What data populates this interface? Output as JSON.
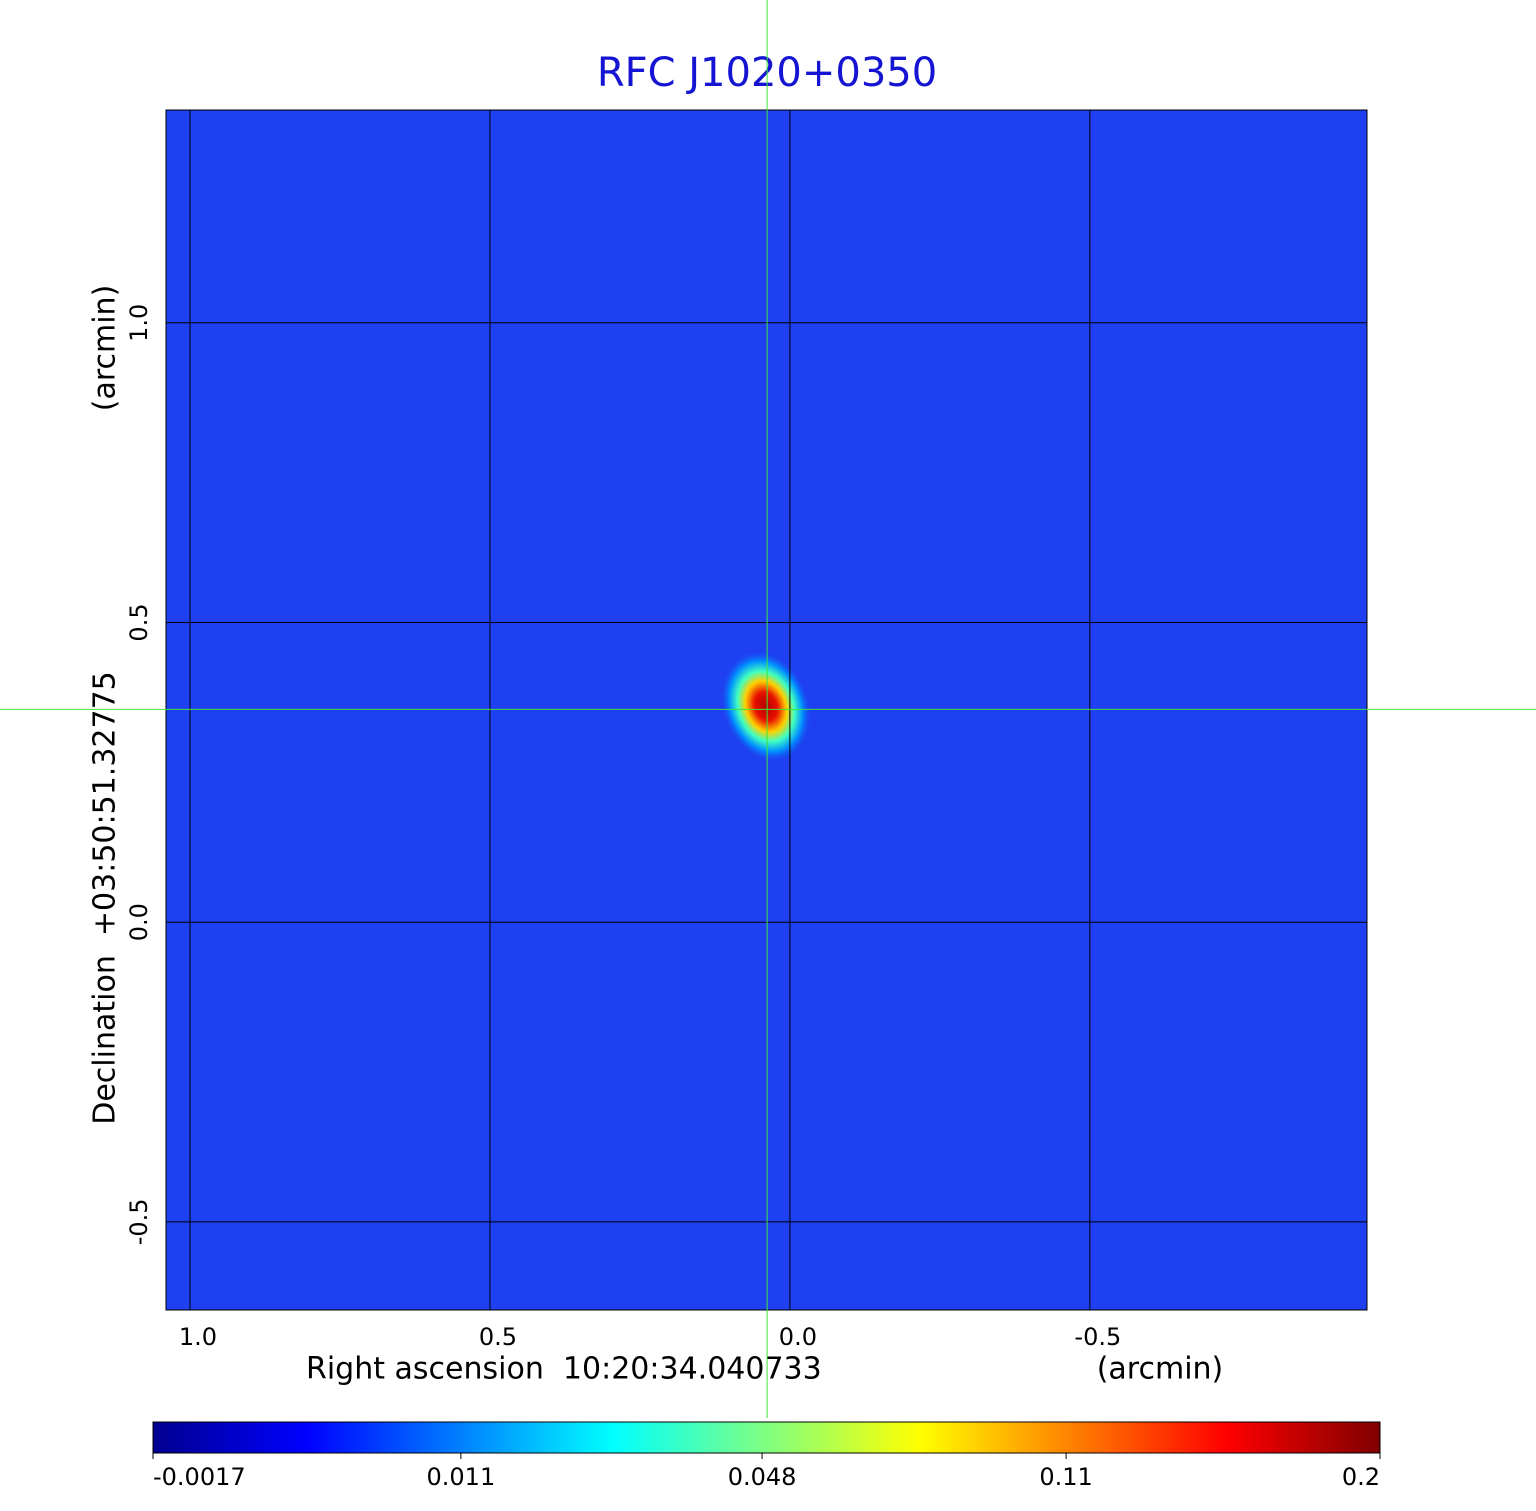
{
  "chart_data": {
    "type": "image",
    "title": "RFC J1020+0350",
    "x_label": "Right ascension  10:20:34.040733",
    "x_unit": "(arcmin)",
    "y_label": "Declination  +03:50:51.32775",
    "y_unit": "(arcmin)",
    "xlim": [
      1.04,
      -0.962
    ],
    "ylim": [
      -0.647,
      1.355
    ],
    "xticks": [
      {
        "value": 1,
        "label": "1.0"
      },
      0.5,
      {
        "value": 0,
        "label": "0.0"
      },
      -0.5
    ],
    "yticks": [
      -0.5,
      {
        "value": 0,
        "label": "0.0"
      },
      0.5,
      {
        "value": 1,
        "label": "1.0"
      }
    ],
    "grid": true,
    "colormap": "jet",
    "source": {
      "x": 0.04,
      "y": 0.36,
      "value": 0.2
    },
    "cursor": {
      "x": 0.038,
      "y": 0.355
    },
    "colorbar": {
      "scale": "sqrt",
      "lim": [
        -0.0017,
        0.2
      ],
      "ticks": [
        -0.0017,
        0.011,
        0.048,
        0.11,
        0.2
      ]
    }
  }
}
